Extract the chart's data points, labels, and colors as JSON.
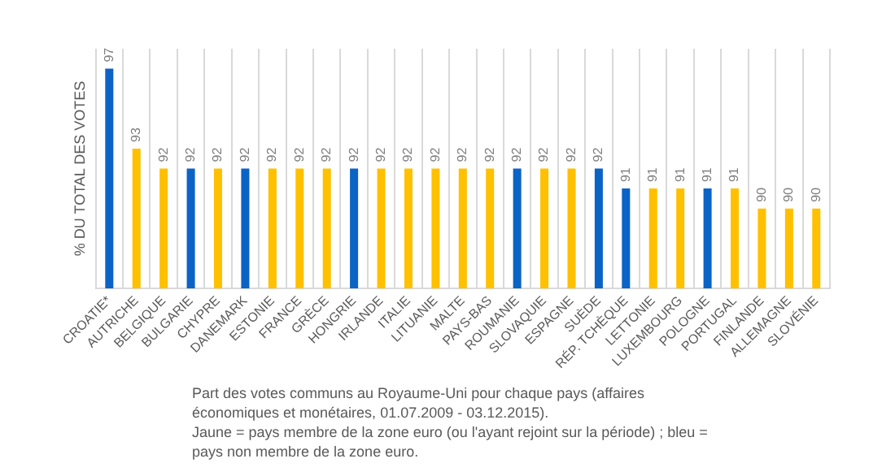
{
  "chart_data": {
    "type": "bar",
    "ylabel": "% DU TOTAL DES VOTES",
    "categories": [
      "CROATIE*",
      "AUTRICHE",
      "BELGIQUE",
      "BULGARIE",
      "CHYPRE",
      "DANEMARK",
      "ESTONIE",
      "FRANCE",
      "GRÈCE",
      "HONGRIE",
      "IRLANDE",
      "ITALIE",
      "LITUANIE",
      "MALTE",
      "PAYS-BAS",
      "ROUMANIE",
      "SLOVAQUIE",
      "ESPAGNE",
      "SUÈDE",
      "RÉP. TCHÈQUE",
      "LETTONIE",
      "LUXEMBOURG",
      "POLOGNE",
      "PORTUGAL",
      "FINLANDE",
      "ALLEMAGNE",
      "SLOVÉNIE"
    ],
    "values": [
      97,
      93,
      92,
      92,
      92,
      92,
      92,
      92,
      92,
      92,
      92,
      92,
      92,
      92,
      92,
      92,
      92,
      92,
      92,
      91,
      91,
      91,
      91,
      91,
      90,
      90,
      90
    ],
    "colors": [
      "#0b63c5",
      "#ffc000",
      "#ffc000",
      "#0b63c5",
      "#ffc000",
      "#0b63c5",
      "#ffc000",
      "#ffc000",
      "#ffc000",
      "#0b63c5",
      "#ffc000",
      "#ffc000",
      "#ffc000",
      "#ffc000",
      "#ffc000",
      "#0b63c5",
      "#ffc000",
      "#ffc000",
      "#0b63c5",
      "#0b63c5",
      "#ffc000",
      "#ffc000",
      "#0b63c5",
      "#ffc000",
      "#ffc000",
      "#ffc000",
      "#ffc000"
    ],
    "ylim": [
      86,
      98
    ],
    "data_labels": true,
    "grid": "x",
    "tick_labels": "x",
    "annotations": [
      "Part des votes communs au Royaume-Uni pour chaque pays (affaires économiques et monétaires, 01.07.2009 - 03.12.2015).",
      "Jaune = pays membre de la zone euro (ou l'ayant rejoint sur la période) ; bleu = pays non membre de la zone euro."
    ]
  }
}
